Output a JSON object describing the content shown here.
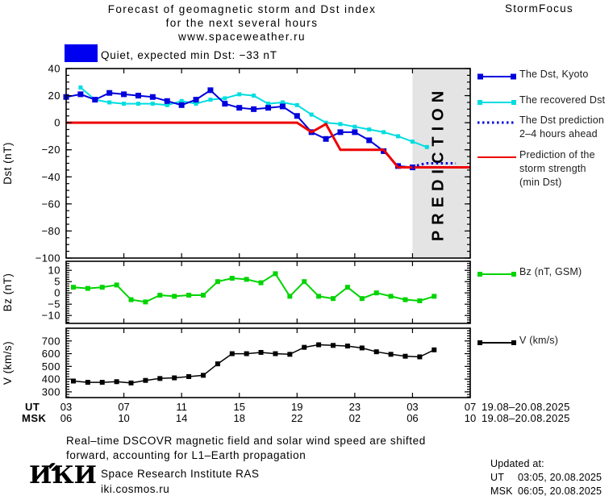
{
  "header": {
    "title_line1": "Forecast of geomagnetic storm and Dst index",
    "title_line2": "for the next several hours",
    "title_line3": "www.spaceweather.ru",
    "brand": "StormFocus"
  },
  "status": {
    "label": "Quiet, expected min Dst: −33 nT",
    "box_color": "#0000f0"
  },
  "chart_data": [
    {
      "id": "dst",
      "type": "line",
      "ylabel": "Dst (nT)",
      "xlim": [
        0,
        28
      ],
      "ylim": [
        -100,
        40
      ],
      "yticks": [
        40,
        20,
        0,
        -20,
        -40,
        -60,
        -80,
        -100
      ],
      "y_minor_step": 5,
      "grid": false,
      "prediction_region": {
        "x_start": 24,
        "x_end": 28,
        "label": "PREDICTION",
        "fill": "#e4e4e4",
        "text_color": "#c8c8c8"
      },
      "series": [
        {
          "name": "The recovered Dst",
          "color": "#00dde0",
          "width": 2,
          "marker": 5,
          "x_start": 1,
          "x_step": 1,
          "values": [
            26,
            17,
            15,
            14,
            14,
            14,
            13,
            16,
            14,
            17,
            18,
            21,
            20,
            14,
            15,
            13,
            6,
            0,
            -1,
            -3,
            -5,
            -7,
            -10,
            -14,
            -18
          ]
        },
        {
          "name": "The Dst, Kyoto",
          "color": "#0000dd",
          "width": 2,
          "marker": 7,
          "x_start": 0,
          "x_step": 1,
          "values": [
            19,
            21,
            17,
            22,
            21,
            20,
            19,
            16,
            13,
            17,
            24,
            14,
            11,
            10,
            11,
            12,
            5,
            -7,
            -12,
            -7,
            -7,
            -13,
            -21,
            -32,
            -33
          ]
        },
        {
          "name": "Prediction of the storm strength (min Dst)",
          "color": "#ee0000",
          "width": 3,
          "points": [
            [
              0,
              0
            ],
            [
              16,
              0
            ],
            [
              17,
              -7
            ],
            [
              18,
              -1
            ],
            [
              19,
              -20
            ],
            [
              22,
              -20
            ],
            [
              23,
              -33
            ],
            [
              28,
              -33
            ]
          ]
        },
        {
          "name": "The Dst prediction 2–4 hours ahead",
          "color": "#0000dd",
          "width": 3,
          "dash": "2.5 3.5",
          "points": [
            [
              24,
              -33
            ],
            [
              24.5,
              -31
            ],
            [
              25,
              -30
            ],
            [
              27,
              -30
            ]
          ]
        }
      ]
    },
    {
      "id": "bz",
      "type": "line",
      "ylabel": "Bz (nT)",
      "xlim": [
        0,
        28
      ],
      "ylim": [
        -13.5,
        14
      ],
      "yticks": [
        10,
        5,
        0,
        -5,
        -10
      ],
      "y_minor_step": 1,
      "grid": false,
      "series": [
        {
          "name": "Bz (nT, GSM)",
          "color": "#00d400",
          "width": 2,
          "marker": 6,
          "x_start": 0.5,
          "x_step": 1,
          "values": [
            2.5,
            2,
            2.5,
            3.5,
            -3,
            -4,
            -1,
            -1.5,
            -1,
            -1,
            5,
            6.5,
            6,
            4.5,
            8.5,
            -1.5,
            5,
            -1.5,
            -2.5,
            2.5,
            -2.5,
            0,
            -1.5,
            -3,
            -3.5,
            -1.5
          ]
        }
      ]
    },
    {
      "id": "v",
      "type": "line",
      "ylabel": "V (km/s)",
      "xlim": [
        0,
        28
      ],
      "ylim": [
        255,
        800
      ],
      "yticks": [
        700,
        600,
        500,
        400,
        300
      ],
      "y_minor_step": 20,
      "grid": false,
      "series": [
        {
          "name": "V (km/s)",
          "color": "#000000",
          "width": 1.5,
          "marker": 6,
          "x_start": 0.5,
          "x_step": 1,
          "values": [
            385,
            375,
            375,
            380,
            370,
            390,
            405,
            410,
            420,
            430,
            520,
            600,
            600,
            610,
            600,
            595,
            650,
            670,
            665,
            660,
            645,
            615,
            595,
            580,
            575,
            630
          ]
        }
      ]
    }
  ],
  "xaxis": {
    "tick_positions": [
      0,
      4,
      8,
      12,
      16,
      20,
      24,
      28
    ],
    "ut_label": "UT",
    "msk_label": "MSK",
    "ut_ticks": [
      "03",
      "07",
      "11",
      "15",
      "19",
      "23",
      "03",
      "07"
    ],
    "msk_ticks": [
      "06",
      "10",
      "14",
      "18",
      "22",
      "02",
      "06",
      "10"
    ],
    "ut_date": "19.08–20.08.2025",
    "msk_date": "19.08–20.08.2025"
  },
  "legend": {
    "entries": [
      {
        "style": "squares",
        "marker": 7,
        "color": "#0000dd",
        "lines": [
          "The Dst, Kyoto"
        ]
      },
      {
        "style": "squares",
        "marker": 6,
        "color": "#00dde0",
        "lines": [
          "The recovered Dst"
        ]
      },
      {
        "style": "dotted",
        "marker": 0,
        "color": "#0000dd",
        "lines": [
          "The Dst prediction",
          "2–4 hours ahead"
        ]
      },
      {
        "style": "line",
        "marker": 0,
        "color": "#ee0000",
        "lines": [
          "Prediction of the",
          "storm strength",
          "(min Dst)"
        ]
      },
      {
        "style": "squares",
        "marker": 6,
        "color": "#00d400",
        "lines": [
          "Bz (nT, GSM)"
        ]
      },
      {
        "style": "squares",
        "marker": 6,
        "color": "#000000",
        "lines": [
          "V (km/s)"
        ]
      }
    ]
  },
  "footer": {
    "note_line1": "Real–time DSCOVR magnetic field and solar wind speed are shifted",
    "note_line2": "forward, accounting for L1–Earth propagation",
    "logo_text": "ИКИ",
    "institute": "Space Research Institute RAS",
    "site": "iki.cosmos.ru",
    "updated_label": "Updated at:",
    "updated_rows": [
      {
        "tz": "UT",
        "value": "03:05, 20.08.2025"
      },
      {
        "tz": "MSK",
        "value": "06:05, 20.08.2025"
      }
    ]
  }
}
